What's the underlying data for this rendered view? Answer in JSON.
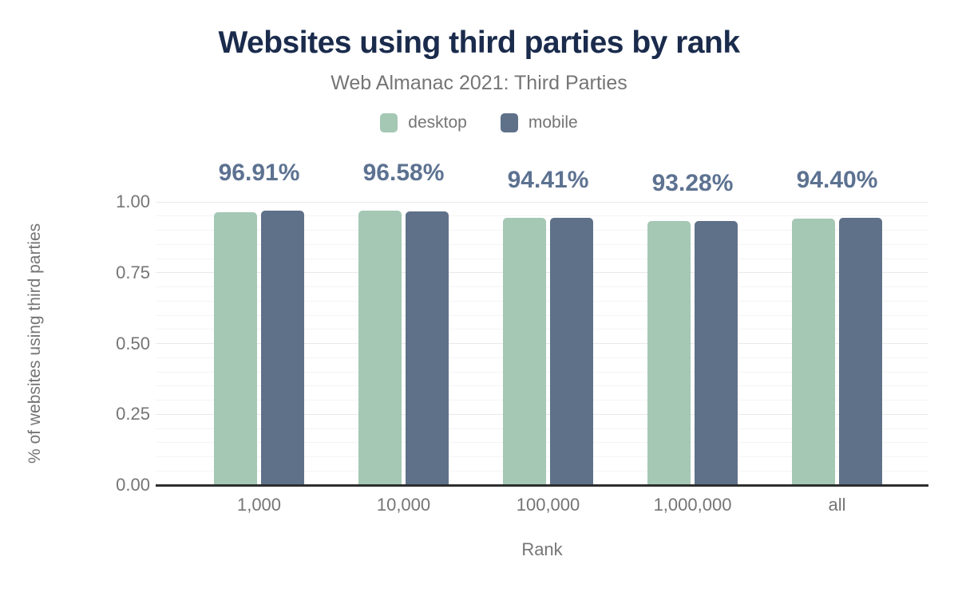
{
  "chart_data": {
    "type": "bar",
    "title": "Websites using third parties by rank",
    "subtitle": "Web Almanac 2021: Third Parties",
    "xlabel": "Rank",
    "ylabel": "% of websites using third parties",
    "categories": [
      "1,000",
      "10,000",
      "100,000",
      "1,000,000",
      "all"
    ],
    "series": [
      {
        "name": "desktop",
        "color": "#a4c8b4",
        "values": [
          0.963,
          0.97,
          0.944,
          0.932,
          0.941
        ]
      },
      {
        "name": "mobile",
        "color": "#5f7189",
        "values": [
          0.9691,
          0.9658,
          0.9441,
          0.9328,
          0.944
        ]
      }
    ],
    "data_labels": {
      "series": "mobile",
      "texts": [
        "96.91%",
        "96.58%",
        "94.41%",
        "93.28%",
        "94.40%"
      ],
      "color": "#5d7291"
    },
    "ylim": [
      0,
      1
    ],
    "yticks": [
      {
        "value": 1.0,
        "label": "1.00"
      },
      {
        "value": 0.75,
        "label": "0.75"
      },
      {
        "value": 0.5,
        "label": "0.50"
      },
      {
        "value": 0.25,
        "label": "0.25"
      },
      {
        "value": 0.0,
        "label": "0.00"
      }
    ],
    "minor_grid_step": 0.05,
    "grid": "horizontal",
    "legend_position": "top-center"
  },
  "colors": {
    "background": "#ffffff",
    "title": "#1a2b4c",
    "subtitle": "#757575",
    "axis_text": "#757575",
    "axis_line": "#2e2e2e",
    "major_grid": "#e9e9e9",
    "minor_grid": "#f4f4f4",
    "desktop": "#a4c8b4",
    "mobile": "#5f7189",
    "value_label": "#5d7291"
  }
}
